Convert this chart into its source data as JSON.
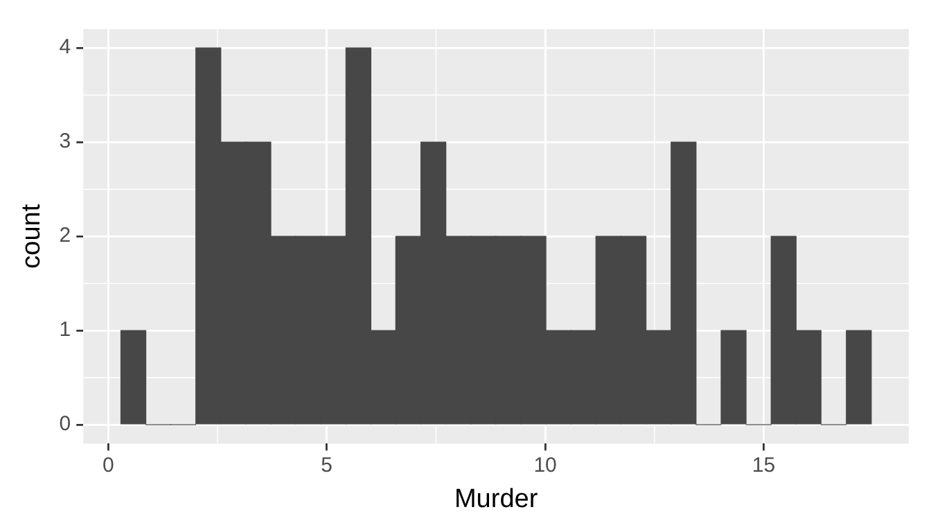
{
  "chart_data": {
    "type": "histogram",
    "xlabel": "Murder",
    "ylabel": "count",
    "bins": [
      0.29,
      0.86,
      1.43,
      2.0,
      2.58,
      3.15,
      3.72,
      4.29,
      4.87,
      5.44,
      6.01,
      6.58,
      7.15,
      7.73,
      8.3,
      8.87,
      9.44,
      10.02,
      10.59,
      11.16,
      11.73,
      12.31,
      12.88,
      13.45,
      14.02,
      14.6,
      15.17,
      15.74,
      16.31,
      16.89,
      17.46
    ],
    "values": [
      1,
      0,
      0,
      4,
      3,
      3,
      2,
      2,
      2,
      4,
      1,
      2,
      3,
      2,
      2,
      2,
      2,
      1,
      1,
      2,
      2,
      1,
      3,
      0,
      1,
      0,
      2,
      1,
      0,
      1
    ],
    "color": "#474747",
    "xlim": [
      -0.57,
      18.32
    ],
    "ylim": [
      -0.2,
      4.2
    ],
    "xticks": [
      0,
      5,
      10,
      15
    ],
    "yticks": [
      0,
      1,
      2,
      3,
      4
    ],
    "grid": true,
    "legend": false
  }
}
